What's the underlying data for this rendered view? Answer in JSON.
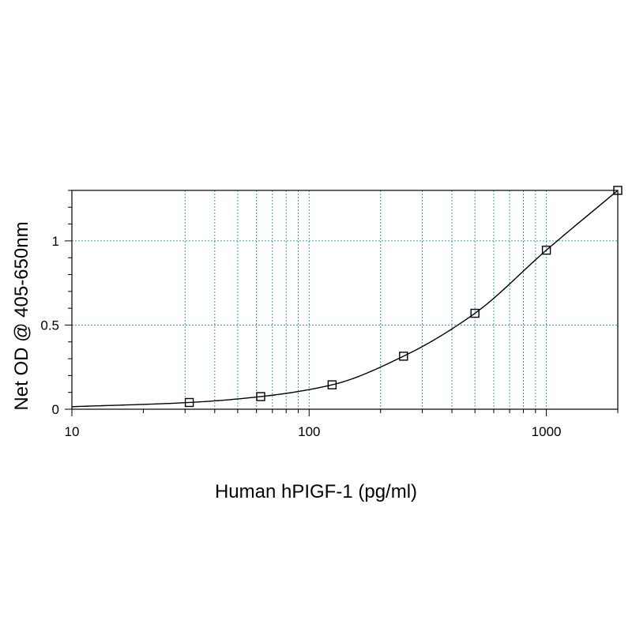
{
  "chart_data": {
    "type": "scatter",
    "title": "",
    "xlabel": "Human hPIGF-1 (pg/ml)",
    "ylabel": "Net OD @ 405-650nm",
    "x_scale": "log",
    "xlim": [
      10,
      2000
    ],
    "ylim": [
      0,
      1.3
    ],
    "x_tick_labels": [
      "10",
      "100",
      "1000"
    ],
    "y_tick_labels": [
      "0",
      "0.5",
      "1"
    ],
    "grid": true,
    "grid_color": "#3399cc",
    "series": [
      {
        "marker": "open-square",
        "line": "fitted-curve",
        "x": [
          31.25,
          62.5,
          125,
          250,
          500,
          1000,
          2000
        ],
        "y": [
          0.04,
          0.075,
          0.145,
          0.315,
          0.57,
          0.945,
          1.3
        ]
      }
    ]
  }
}
